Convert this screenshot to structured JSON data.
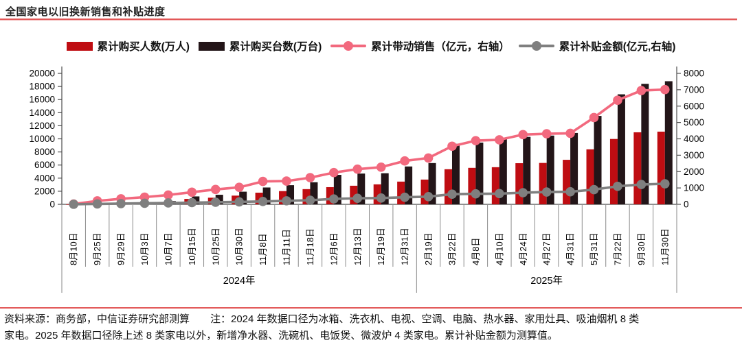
{
  "title": "全国家电以旧换新销售和补贴进度",
  "colors": {
    "accent_rule": "#e25757",
    "bar_people": "#bf0d12",
    "bar_units": "#231518",
    "line_sales": "#f2697e",
    "line_subsidy": "#7f7f7f",
    "axis": "#4d4d4d",
    "band_line": "#8a8a8a"
  },
  "chart_data": {
    "type": "bar+line combo",
    "title": "全国家电以旧换新销售和补贴进度",
    "categories": [
      "8月10日",
      "9月25日",
      "9月29日",
      "10月3日",
      "10月7日",
      "10月15日",
      "10月25日",
      "10月30日",
      "11月8日",
      "11月11日",
      "11月18日",
      "12月6日",
      "12月13日",
      "12月19日",
      "12月31日",
      "2月19日",
      "3月22日",
      "4月8日",
      "4月10日",
      "4月24日",
      "4月27日",
      "4月31日",
      "5月31日",
      "7月22日",
      "9月30日",
      "11月30日"
    ],
    "year_groups": [
      {
        "label": "2024年",
        "span": 15
      },
      {
        "label": "2025年",
        "span": 11
      }
    ],
    "series": [
      {
        "name": "累计购买人数(万人)",
        "type": "bar",
        "axis": "left",
        "color": "#bf0d12",
        "values": [
          15,
          75,
          140,
          210,
          320,
          830,
          1010,
          1330,
          1780,
          2020,
          2320,
          2620,
          2840,
          3050,
          3470,
          3780,
          5360,
          5570,
          5670,
          6280,
          6320,
          6800,
          8400,
          9980,
          11000,
          11100
        ]
      },
      {
        "name": "累计购买台数(万台)",
        "type": "bar",
        "axis": "left",
        "color": "#231518",
        "values": [
          25,
          115,
          215,
          330,
          490,
          1210,
          1460,
          1930,
          2570,
          2920,
          3370,
          4500,
          4700,
          4750,
          5780,
          6300,
          9240,
          9430,
          9980,
          10300,
          10500,
          10900,
          13500,
          16800,
          18400,
          18800
        ]
      },
      {
        "name": "累计带动销售（亿元，右轴）",
        "type": "line",
        "axis": "right",
        "color": "#f2697e",
        "values": [
          20,
          210,
          340,
          440,
          570,
          740,
          910,
          1040,
          1400,
          1420,
          1630,
          1940,
          2150,
          2270,
          2650,
          2830,
          3550,
          3890,
          3940,
          4260,
          4310,
          4340,
          5300,
          6360,
          6950,
          7010
        ]
      },
      {
        "name": "累计补贴金额(亿元,右轴)",
        "type": "line",
        "axis": "right",
        "color": "#7f7f7f",
        "values": [
          5,
          25,
          45,
          65,
          85,
          105,
          130,
          150,
          175,
          215,
          250,
          330,
          370,
          385,
          430,
          470,
          620,
          640,
          655,
          710,
          750,
          765,
          900,
          1100,
          1210,
          1255
        ]
      }
    ],
    "left_axis": {
      "min": 0,
      "max": 20000,
      "step": 2000
    },
    "right_axis": {
      "min": 0,
      "max": 8000,
      "step": 1000
    },
    "grid": false,
    "legend_position": "top-center"
  },
  "footer": {
    "line1": "资料来源：商务部，中信证券研究部测算　　注：2024 年数据口径为冰箱、洗衣机、电视、空调、电脑、热水器、家用灶具、吸油烟机 8 类",
    "line2": "家电。2025 年数据口径除上述 8 类家电以外，新增净水器、洗碗机、电饭煲、微波炉 4 类家电。累计补贴金额为测算值。"
  }
}
